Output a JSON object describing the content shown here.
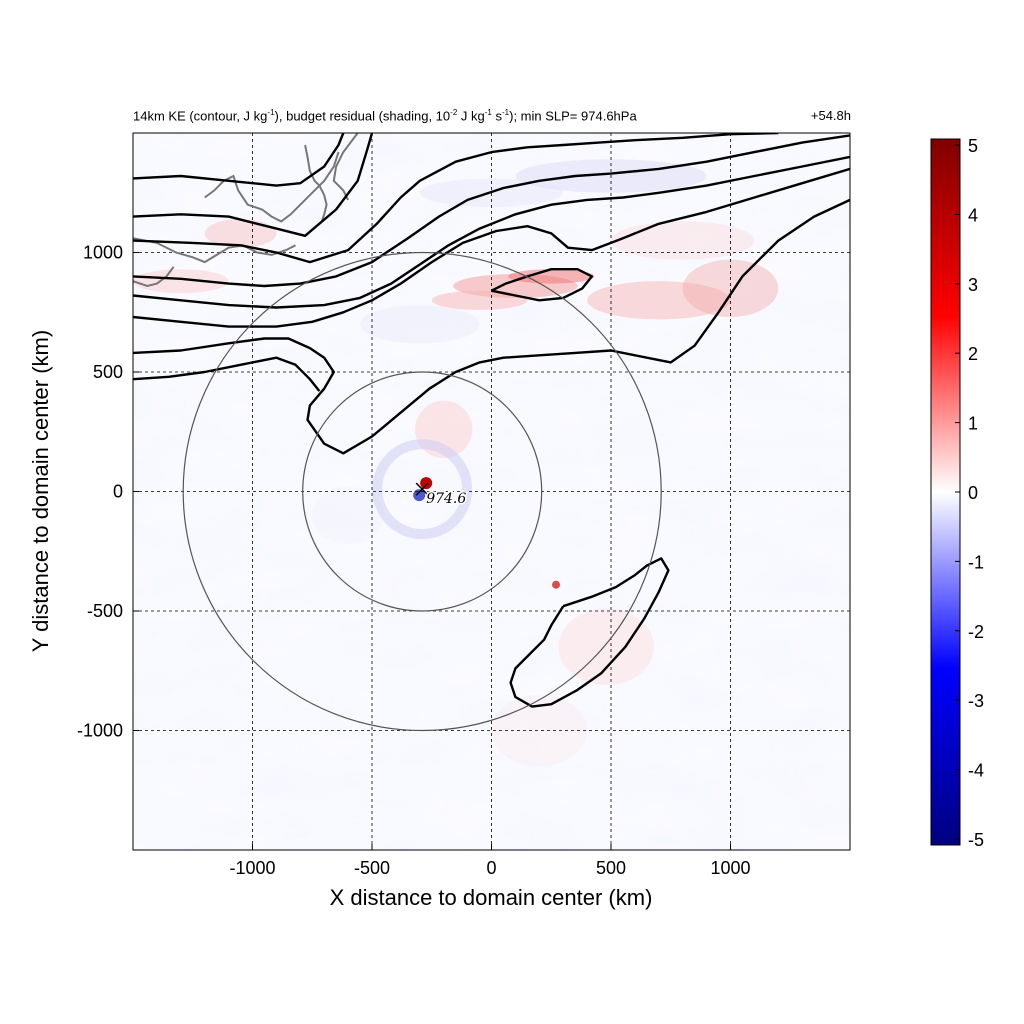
{
  "title": {
    "left_prefix": "14km KE (contour, J kg",
    "left_sup1": "-1",
    "left_mid1": "), budget residual (shading, 10",
    "left_sup2": "-2",
    "left_mid2": " J kg",
    "left_sup3": "-1",
    "left_mid3": " s",
    "left_sup4": "-1",
    "left_suffix": "); min SLP= 974.6hPa",
    "right": "+54.8h"
  },
  "chart_data": {
    "type": "heatmap",
    "xlabel": "X distance to domain center (km)",
    "ylabel": "Y distance to domain center (km)",
    "xlim": [
      -1500,
      1500
    ],
    "ylim": [
      -1500,
      1500
    ],
    "x_ticks": [
      -1000,
      -500,
      0,
      500,
      1000
    ],
    "y_ticks": [
      -1000,
      -500,
      0,
      500,
      1000
    ],
    "grid": true,
    "colorbar": {
      "range": [
        -5,
        5
      ],
      "ticks": [
        5,
        4,
        3,
        2,
        1,
        0,
        -1,
        -2,
        -3,
        -4,
        -5
      ],
      "colors": [
        "#00007f",
        "#0000ff",
        "#ffffff",
        "#ff0000",
        "#7f0000"
      ]
    },
    "center_marker": {
      "x": -290,
      "y": 10,
      "label": "974.6"
    },
    "range_rings_km": [
      500,
      1000
    ],
    "contours": [
      [
        [
          -1500,
          1310
        ],
        [
          -1300,
          1320
        ],
        [
          -1100,
          1300
        ],
        [
          -900,
          1280
        ],
        [
          -800,
          1290
        ],
        [
          -700,
          1360
        ],
        [
          -640,
          1450
        ],
        [
          -620,
          1500
        ]
      ],
      [
        [
          -1500,
          1150
        ],
        [
          -1300,
          1160
        ],
        [
          -1100,
          1150
        ],
        [
          -900,
          1100
        ],
        [
          -780,
          1070
        ],
        [
          -650,
          1180
        ],
        [
          -560,
          1300
        ],
        [
          -520,
          1430
        ],
        [
          -500,
          1500
        ]
      ],
      [
        [
          -1500,
          1050
        ],
        [
          -1250,
          1040
        ],
        [
          -1050,
          1030
        ],
        [
          -900,
          1000
        ],
        [
          -760,
          960
        ],
        [
          -600,
          1010
        ],
        [
          -480,
          1120
        ],
        [
          -380,
          1230
        ],
        [
          -300,
          1300
        ],
        [
          -150,
          1380
        ],
        [
          0,
          1420
        ],
        [
          150,
          1440
        ],
        [
          300,
          1450
        ],
        [
          450,
          1460
        ],
        [
          600,
          1470
        ],
        [
          800,
          1480
        ],
        [
          1000,
          1495
        ],
        [
          1200,
          1500
        ]
      ],
      [
        [
          -1500,
          900
        ],
        [
          -1300,
          890
        ],
        [
          -1100,
          870
        ],
        [
          -950,
          860
        ],
        [
          -800,
          870
        ],
        [
          -650,
          900
        ],
        [
          -500,
          960
        ],
        [
          -350,
          1060
        ],
        [
          -220,
          1150
        ],
        [
          -100,
          1220
        ],
        [
          50,
          1270
        ],
        [
          200,
          1300
        ],
        [
          350,
          1320
        ],
        [
          500,
          1330
        ],
        [
          700,
          1350
        ],
        [
          900,
          1380
        ],
        [
          1100,
          1420
        ],
        [
          1300,
          1460
        ],
        [
          1500,
          1490
        ]
      ],
      [
        [
          -1500,
          820
        ],
        [
          -1300,
          800
        ],
        [
          -1100,
          780
        ],
        [
          -900,
          770
        ],
        [
          -700,
          780
        ],
        [
          -550,
          810
        ],
        [
          -420,
          870
        ],
        [
          -300,
          950
        ],
        [
          -180,
          1030
        ],
        [
          -50,
          1100
        ],
        [
          100,
          1160
        ],
        [
          250,
          1200
        ],
        [
          400,
          1220
        ],
        [
          550,
          1230
        ],
        [
          700,
          1250
        ],
        [
          900,
          1280
        ],
        [
          1100,
          1320
        ],
        [
          1300,
          1360
        ],
        [
          1500,
          1400
        ]
      ],
      [
        [
          -1500,
          730
        ],
        [
          -1300,
          710
        ],
        [
          -1100,
          690
        ],
        [
          -900,
          690
        ],
        [
          -750,
          710
        ],
        [
          -620,
          750
        ],
        [
          -500,
          800
        ],
        [
          -380,
          870
        ],
        [
          -250,
          960
        ],
        [
          -120,
          1040
        ],
        [
          20,
          1090
        ],
        [
          150,
          1110
        ],
        [
          250,
          1080
        ],
        [
          320,
          1020
        ],
        [
          420,
          1010
        ],
        [
          550,
          1060
        ],
        [
          700,
          1120
        ],
        [
          900,
          1170
        ],
        [
          1100,
          1230
        ],
        [
          1300,
          1290
        ],
        [
          1500,
          1350
        ]
      ],
      [
        [
          -1500,
          580
        ],
        [
          -1300,
          590
        ],
        [
          -1100,
          620
        ],
        [
          -950,
          640
        ],
        [
          -850,
          640
        ],
        [
          -760,
          600
        ],
        [
          -700,
          560
        ],
        [
          -660,
          500
        ],
        [
          -700,
          430
        ],
        [
          -760,
          360
        ],
        [
          -770,
          300
        ],
        [
          -700,
          200
        ],
        [
          -620,
          160
        ],
        [
          -500,
          230
        ],
        [
          -380,
          330
        ],
        [
          -260,
          430
        ],
        [
          -150,
          500
        ],
        [
          -50,
          540
        ],
        [
          50,
          560
        ],
        [
          200,
          570
        ],
        [
          350,
          580
        ],
        [
          500,
          590
        ],
        [
          650,
          560
        ],
        [
          750,
          540
        ],
        [
          850,
          610
        ],
        [
          950,
          750
        ],
        [
          1050,
          900
        ],
        [
          1200,
          1050
        ],
        [
          1350,
          1150
        ],
        [
          1500,
          1220
        ]
      ],
      [
        [
          -1500,
          470
        ],
        [
          -1350,
          480
        ],
        [
          -1200,
          500
        ],
        [
          -1050,
          530
        ],
        [
          -900,
          560
        ],
        [
          -820,
          530
        ],
        [
          -760,
          470
        ],
        [
          -720,
          420
        ]
      ],
      [
        [
          0,
          840
        ],
        [
          100,
          820
        ],
        [
          200,
          800
        ],
        [
          300,
          810
        ],
        [
          380,
          850
        ],
        [
          420,
          900
        ],
        [
          360,
          930
        ],
        [
          250,
          930
        ],
        [
          150,
          900
        ],
        [
          60,
          870
        ],
        [
          0,
          840
        ]
      ],
      [
        [
          300,
          -480
        ],
        [
          420,
          -440
        ],
        [
          520,
          -400
        ],
        [
          600,
          -350
        ],
        [
          650,
          -310
        ],
        [
          710,
          -280
        ],
        [
          740,
          -330
        ],
        [
          700,
          -420
        ],
        [
          640,
          -530
        ],
        [
          560,
          -650
        ],
        [
          460,
          -760
        ],
        [
          360,
          -830
        ],
        [
          250,
          -890
        ],
        [
          170,
          -900
        ],
        [
          100,
          -860
        ],
        [
          80,
          -800
        ],
        [
          100,
          -740
        ],
        [
          150,
          -690
        ],
        [
          220,
          -620
        ],
        [
          250,
          -560
        ],
        [
          300,
          -480
        ]
      ]
    ],
    "coastlines": [
      [
        [
          -1500,
          1060
        ],
        [
          -1400,
          1040
        ],
        [
          -1320,
          1000
        ],
        [
          -1250,
          980
        ],
        [
          -1200,
          960
        ],
        [
          -1150,
          990
        ],
        [
          -1100,
          1020
        ],
        [
          -1040,
          1030
        ],
        [
          -980,
          1000
        ],
        [
          -920,
          990
        ],
        [
          -860,
          1010
        ],
        [
          -820,
          1030
        ]
      ],
      [
        [
          -1500,
          880
        ],
        [
          -1440,
          860
        ],
        [
          -1400,
          870
        ],
        [
          -1360,
          900
        ],
        [
          -1330,
          940
        ]
      ],
      [
        [
          -1200,
          1230
        ],
        [
          -1160,
          1260
        ],
        [
          -1120,
          1300
        ],
        [
          -1080,
          1320
        ],
        [
          -1060,
          1260
        ],
        [
          -1020,
          1200
        ],
        [
          -960,
          1180
        ],
        [
          -920,
          1150
        ],
        [
          -880,
          1130
        ],
        [
          -840,
          1160
        ],
        [
          -800,
          1200
        ],
        [
          -760,
          1240
        ],
        [
          -700,
          1300
        ],
        [
          -660,
          1360
        ],
        [
          -640,
          1420
        ]
      ],
      [
        [
          -780,
          1450
        ],
        [
          -770,
          1400
        ],
        [
          -760,
          1340
        ],
        [
          -740,
          1300
        ],
        [
          -720,
          1280
        ],
        [
          -700,
          1240
        ],
        [
          -690,
          1200
        ],
        [
          -700,
          1160
        ],
        [
          -710,
          1130
        ]
      ],
      [
        [
          -560,
          1500
        ],
        [
          -620,
          1420
        ],
        [
          -650,
          1360
        ],
        [
          -660,
          1300
        ],
        [
          -620,
          1260
        ],
        [
          -600,
          1220
        ]
      ]
    ]
  }
}
